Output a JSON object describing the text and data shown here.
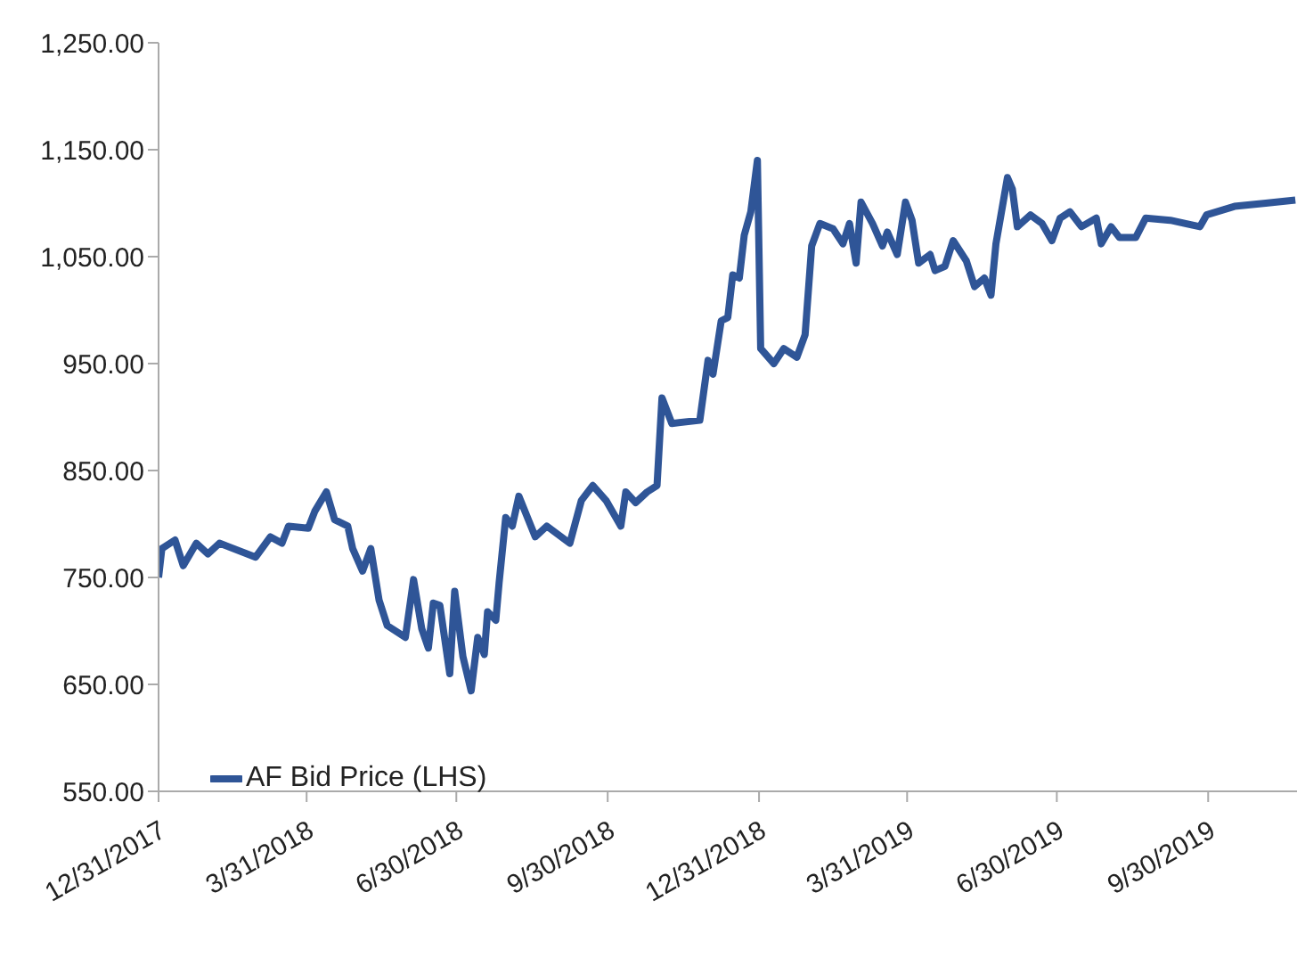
{
  "chart_data": {
    "type": "line",
    "legend": "bottom left",
    "marker": "none",
    "line_style": "solid",
    "grid": false,
    "xlim": [
      "2017-12-31",
      "2019-11-23"
    ],
    "xticks": [
      {
        "value": "2017-12-31",
        "label": "12/31/2017"
      },
      {
        "value": "2018-03-31",
        "label": "3/31/2018"
      },
      {
        "value": "2018-06-30",
        "label": "6/30/2018"
      },
      {
        "value": "2018-09-30",
        "label": "9/30/2018"
      },
      {
        "value": "2018-12-31",
        "label": "12/31/2018"
      },
      {
        "value": "2019-03-31",
        "label": "3/31/2019"
      },
      {
        "value": "2019-06-30",
        "label": "6/30/2019"
      },
      {
        "value": "2019-09-30",
        "label": "9/30/2019"
      }
    ],
    "ylim": [
      550,
      1250
    ],
    "yticks": [
      {
        "value": 550,
        "label": "550.00"
      },
      {
        "value": 650,
        "label": "650.00"
      },
      {
        "value": 750,
        "label": "750.00"
      },
      {
        "value": 850,
        "label": "850.00"
      },
      {
        "value": 950,
        "label": "950.00"
      },
      {
        "value": 1050,
        "label": "1,050.00"
      },
      {
        "value": 1150,
        "label": "1,150.00"
      },
      {
        "value": 1250,
        "label": "1,250.00"
      }
    ],
    "x": [
      "2017-12-31",
      "2018-01-02",
      "2018-01-10",
      "2018-01-15",
      "2018-01-23",
      "2018-01-30",
      "2018-02-06",
      "2018-02-28",
      "2018-03-09",
      "2018-03-16",
      "2018-03-20",
      "2018-04-01",
      "2018-04-05",
      "2018-04-12",
      "2018-04-17",
      "2018-04-25",
      "2018-04-28",
      "2018-05-04",
      "2018-05-09",
      "2018-05-14",
      "2018-05-19",
      "2018-05-30",
      "2018-06-04",
      "2018-06-09",
      "2018-06-13",
      "2018-06-16",
      "2018-06-20",
      "2018-06-26",
      "2018-06-29",
      "2018-07-04",
      "2018-07-09",
      "2018-07-13",
      "2018-07-17",
      "2018-07-19",
      "2018-07-24",
      "2018-07-26",
      "2018-07-30",
      "2018-08-03",
      "2018-08-07",
      "2018-08-17",
      "2018-08-24",
      "2018-09-07",
      "2018-09-14",
      "2018-09-21",
      "2018-09-29",
      "2018-10-08",
      "2018-10-11",
      "2018-10-17",
      "2018-10-24",
      "2018-10-30",
      "2018-11-02",
      "2018-11-08",
      "2018-11-25",
      "2018-11-30",
      "2018-12-03",
      "2018-12-08",
      "2018-12-12",
      "2018-12-15",
      "2018-12-19",
      "2018-12-22",
      "2018-12-26",
      "2018-12-30",
      "2019-01-01",
      "2019-01-09",
      "2019-01-15",
      "2019-01-23",
      "2019-01-28",
      "2019-02-01",
      "2019-02-06",
      "2019-02-14",
      "2019-02-20",
      "2019-02-24",
      "2019-02-28",
      "2019-03-03",
      "2019-03-10",
      "2019-03-16",
      "2019-03-19",
      "2019-03-25",
      "2019-03-30",
      "2019-04-03",
      "2019-04-07",
      "2019-04-14",
      "2019-04-17",
      "2019-04-23",
      "2019-04-28",
      "2019-05-06",
      "2019-05-11",
      "2019-05-17",
      "2019-05-21",
      "2019-05-24",
      "2019-05-31",
      "2019-06-03",
      "2019-06-06",
      "2019-06-14",
      "2019-06-21",
      "2019-06-27",
      "2019-07-02",
      "2019-07-08",
      "2019-07-15",
      "2019-07-24",
      "2019-07-27",
      "2019-08-02",
      "2019-08-07",
      "2019-08-17",
      "2019-08-23",
      "2019-09-07",
      "2019-09-25",
      "2019-09-29",
      "2019-10-16",
      "2019-11-04",
      "2019-11-22"
    ],
    "series": [
      {
        "name": "AF Bid Price (LHS)",
        "color": "#2f5597",
        "values": [
          750,
          777,
          785,
          761,
          782,
          772,
          782,
          769,
          788,
          782,
          798,
          796,
          812,
          830,
          804,
          798,
          777,
          756,
          777,
          729,
          705,
          694,
          748,
          702,
          684,
          726,
          724,
          660,
          737,
          676,
          644,
          694,
          678,
          718,
          710,
          745,
          806,
          798,
          826,
          788,
          798,
          782,
          822,
          836,
          822,
          798,
          830,
          820,
          830,
          836,
          918,
          894,
          897,
          953,
          940,
          990,
          993,
          1033,
          1030,
          1070,
          1092,
          1140,
          964,
          950,
          964,
          956,
          977,
          1060,
          1081,
          1076,
          1062,
          1081,
          1044,
          1101,
          1081,
          1060,
          1073,
          1052,
          1101,
          1084,
          1044,
          1052,
          1037,
          1041,
          1065,
          1046,
          1022,
          1030,
          1014,
          1062,
          1124,
          1113,
          1078,
          1089,
          1081,
          1065,
          1086,
          1092,
          1078,
          1086,
          1062,
          1078,
          1068,
          1068,
          1086,
          1084,
          1078,
          1089,
          1097,
          1100,
          1103
        ]
      }
    ]
  }
}
